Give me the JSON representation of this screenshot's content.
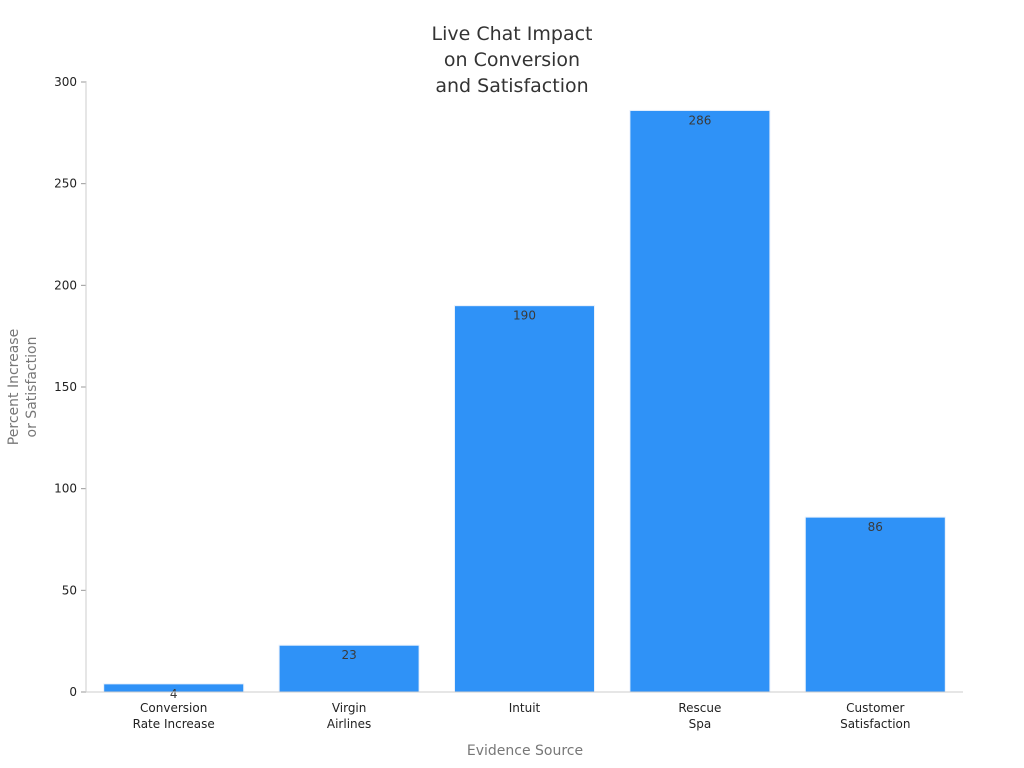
{
  "chart_data": {
    "type": "bar",
    "title_lines": [
      "Live Chat Impact",
      "on Conversion",
      "and Satisfaction"
    ],
    "xlabel": "Evidence Source",
    "ylabel_lines": [
      "Percent Increase",
      "or Satisfaction"
    ],
    "categories": [
      [
        "Conversion",
        "Rate Increase"
      ],
      [
        "Virgin",
        "Airlines"
      ],
      [
        "Intuit"
      ],
      [
        "Rescue",
        "Spa"
      ],
      [
        "Customer",
        "Satisfaction"
      ]
    ],
    "values": [
      4,
      23,
      190,
      286,
      86
    ],
    "data_labels": [
      "4",
      "23",
      "190",
      "286",
      "86"
    ],
    "ylim": [
      0,
      300
    ],
    "yticks": [
      0,
      50,
      100,
      150,
      200,
      250,
      300
    ],
    "bar_color": "#2f92f7",
    "grid": false,
    "legend": "none"
  }
}
